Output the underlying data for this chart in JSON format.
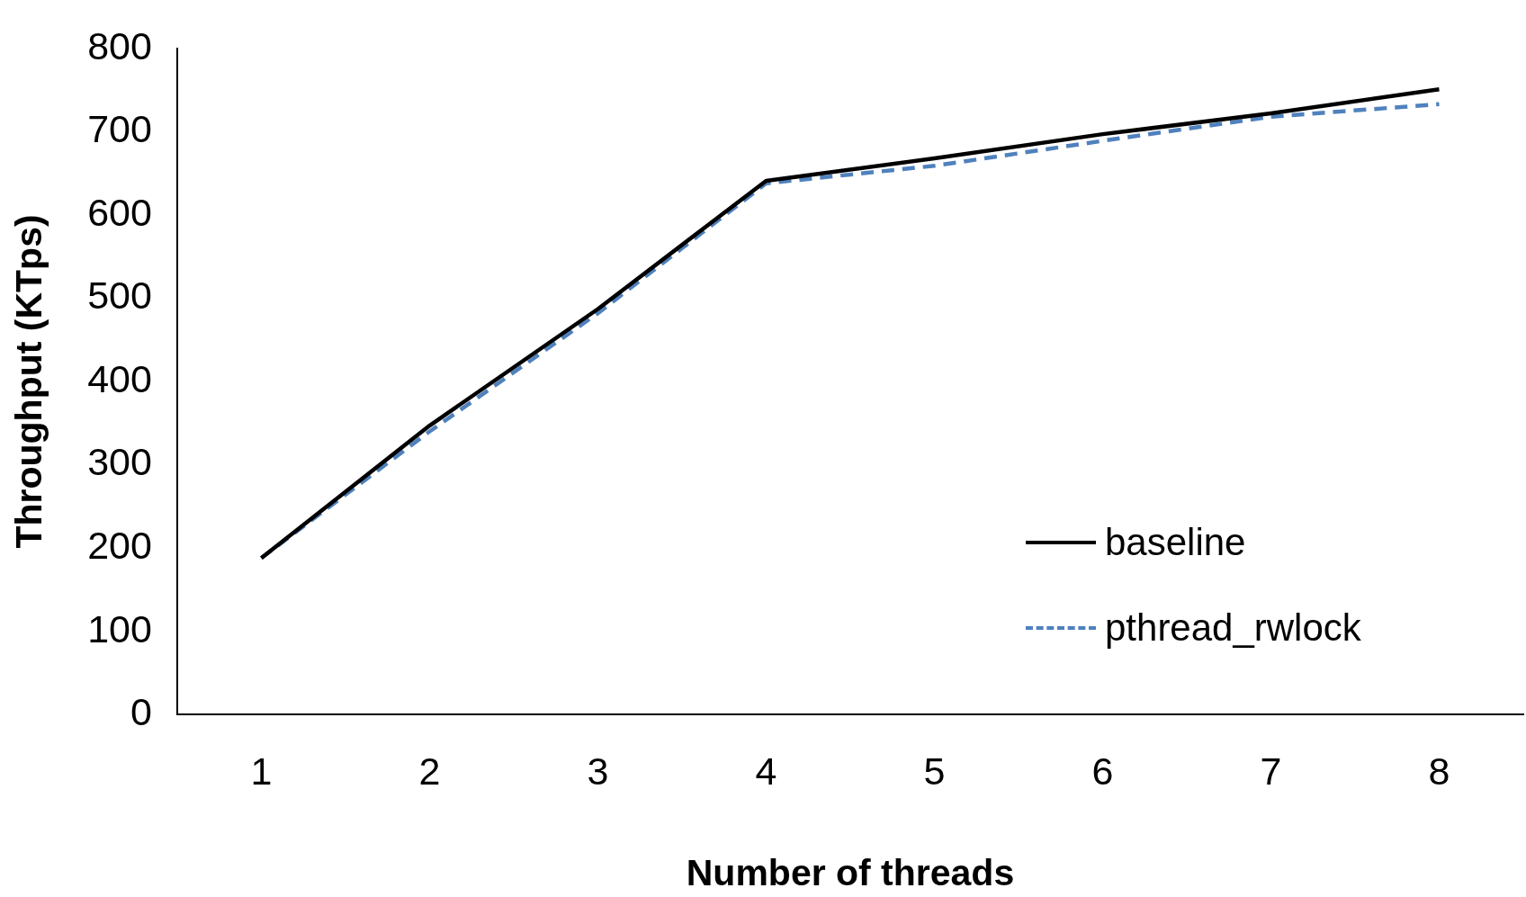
{
  "chart_data": {
    "type": "line",
    "xlabel": "Number of threads",
    "ylabel": "Throughput (KTps)",
    "categories": [
      "1",
      "2",
      "3",
      "4",
      "5",
      "6",
      "7",
      "8"
    ],
    "series": [
      {
        "name": "baseline",
        "color": "#000000",
        "line_style": "solid",
        "values": [
          188,
          347,
          487,
          641,
          668,
          697,
          722,
          751
        ]
      },
      {
        "name": "pthread_rwlock",
        "color": "#4f81bd",
        "line_style": "dashed",
        "values": [
          188,
          340,
          482,
          638,
          659,
          689,
          718,
          733
        ]
      }
    ],
    "ylim": [
      0,
      800
    ],
    "yticks": [
      0,
      100,
      200,
      300,
      400,
      500,
      600,
      700,
      800
    ],
    "grid": false,
    "legend": "right",
    "marker": "none"
  }
}
